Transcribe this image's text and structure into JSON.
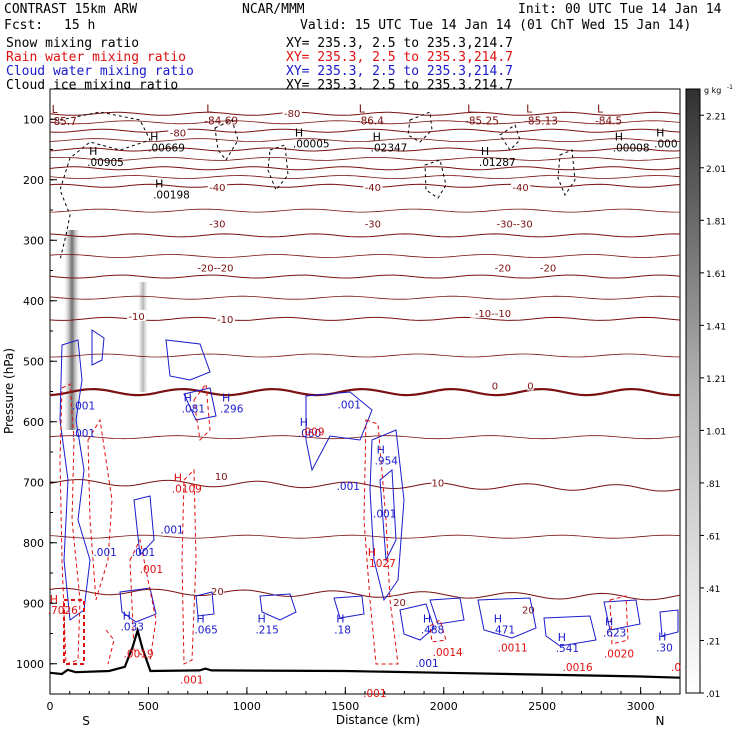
{
  "header": {
    "model": "CONTRAST 15km ARW",
    "org": "NCAR/MMM",
    "init": "Init: 00 UTC Tue 14 Jan 14",
    "fcst_label": "Fcst:",
    "fcst_value": "15 h",
    "valid": "Valid: 15 UTC Tue 14 Jan 14 (01 ChT Wed 15 Jan 14)"
  },
  "legend": [
    {
      "label": "Snow mixing ratio",
      "xy": "XY= 235.3,  2.5 to 235.3,214.7",
      "color": "#000000"
    },
    {
      "label": "Rain water mixing ratio",
      "xy": "XY= 235.3,  2.5 to 235.3,214.7",
      "color": "#e01010"
    },
    {
      "label": "Cloud water mixing ratio",
      "xy": "XY= 235.3,  2.5 to 235.3,214.7",
      "color": "#1a1acc"
    },
    {
      "label": "Cloud ice mixing ratio",
      "xy": "XY= 235.3,  2.5 to 235.3,214.7",
      "color": "#000000"
    }
  ],
  "chart_data": {
    "type": "contour cross-section",
    "xlabel": "Distance (km)",
    "ylabel": "Pressure (hPa)",
    "xlim": [
      0,
      3200
    ],
    "ylim": [
      1050,
      50
    ],
    "x_ticks": [
      0,
      500,
      1000,
      1500,
      2000,
      2500,
      3000
    ],
    "y_ticks": [
      100,
      200,
      300,
      400,
      500,
      600,
      700,
      800,
      900,
      1000
    ],
    "end_labels": [
      "S",
      "N"
    ],
    "colorbar": {
      "units": "g kg",
      "units_exp": "-1",
      "ticks": [
        "2.21",
        "2.01",
        "1.81",
        "1.61",
        "1.41",
        "1.21",
        "1.01",
        ".81",
        ".61",
        ".41",
        ".21",
        ".01"
      ],
      "range": [
        0.01,
        2.31
      ]
    },
    "isotherms": [
      {
        "t": -80,
        "p": 91
      },
      {
        "t": -70,
        "p": 119
      },
      {
        "t": -60,
        "p": 150
      },
      {
        "t": -50,
        "p": 181
      },
      {
        "t": -40,
        "p": 210
      },
      {
        "t": -30,
        "p": 292
      },
      {
        "t": -20,
        "p": 360
      },
      {
        "t": -10,
        "p": 430
      },
      {
        "t": 0,
        "p": 551
      },
      {
        "t": 10,
        "p": 700
      },
      {
        "t": 20,
        "p": 880
      }
    ],
    "isotherm_labels": [
      {
        "text": "-80",
        "x": 1230,
        "p": 90
      },
      {
        "text": "-80",
        "x": 650,
        "p": 122
      },
      {
        "text": "-40",
        "x": 850,
        "p": 212
      },
      {
        "text": "-40",
        "x": 1640,
        "p": 212
      },
      {
        "text": "-40",
        "x": 2390,
        "p": 212
      },
      {
        "text": "-30",
        "x": 850,
        "p": 272
      },
      {
        "text": "-30",
        "x": 1640,
        "p": 272
      },
      {
        "text": "-30--30",
        "x": 2360,
        "p": 272
      },
      {
        "text": "-20--20",
        "x": 840,
        "p": 345
      },
      {
        "text": "-20",
        "x": 2300,
        "p": 345
      },
      {
        "text": "-20",
        "x": 2530,
        "p": 345
      },
      {
        "text": "-10",
        "x": 440,
        "p": 425
      },
      {
        "text": "-10",
        "x": 890,
        "p": 430
      },
      {
        "text": "-10--10",
        "x": 2250,
        "p": 420
      },
      {
        "text": "0",
        "x": 2260,
        "p": 540
      },
      {
        "text": "0",
        "x": 2440,
        "p": 540
      },
      {
        "text": "10",
        "x": 870,
        "p": 690
      },
      {
        "text": "10",
        "x": 1970,
        "p": 700
      },
      {
        "text": "20",
        "x": 850,
        "p": 880
      },
      {
        "text": "20",
        "x": 1775,
        "p": 898
      },
      {
        "text": "20",
        "x": 2430,
        "p": 910
      }
    ],
    "low_markers": [
      {
        "text": "-85.7",
        "x": 110,
        "p": 93
      },
      {
        "text": "-84.69",
        "x": 895,
        "p": 92
      },
      {
        "text": "-86.4",
        "x": 1670,
        "p": 92
      },
      {
        "text": "-85.25",
        "x": 2220,
        "p": 92
      },
      {
        "text": "-85.13",
        "x": 2520,
        "p": 92
      },
      {
        "text": "-84.5",
        "x": 2880,
        "p": 92
      }
    ],
    "high_markers": [
      {
        "text": ".00669",
        "x": 590,
        "p": 148,
        "color": "#000000"
      },
      {
        "text": ".00005",
        "x": 1325,
        "p": 142,
        "color": "#000000"
      },
      {
        "text": ".02347",
        "x": 1720,
        "p": 148,
        "color": "#000000"
      },
      {
        "text": ".00008",
        "x": 2950,
        "p": 148,
        "color": "#000000"
      },
      {
        "text": ".000",
        "x": 3160,
        "p": 142,
        "color": "#000000"
      },
      {
        "text": ".00905",
        "x": 280,
        "p": 172,
        "color": "#000000"
      },
      {
        "text": ".01287",
        "x": 2270,
        "p": 172,
        "color": "#000000"
      },
      {
        "text": ".00198",
        "x": 615,
        "p": 226,
        "color": "#000000"
      },
      {
        "text": ".081",
        "x": 760,
        "p": 580,
        "color": "#1a1acc"
      },
      {
        "text": ".296",
        "x": 955,
        "p": 580,
        "color": "#1a1acc"
      },
      {
        "text": ".060",
        "x": 1350,
        "p": 620,
        "color": "#1a1acc"
      },
      {
        "text": ".954",
        "x": 1740,
        "p": 666,
        "color": "#1a1acc"
      },
      {
        "text": ".0109",
        "x": 710,
        "p": 712,
        "color": "#e01010"
      },
      {
        "text": ".065",
        "x": 825,
        "p": 945,
        "color": "#1a1acc"
      },
      {
        "text": ".215",
        "x": 1135,
        "p": 945,
        "color": "#1a1acc"
      },
      {
        "text": ".18",
        "x": 1535,
        "p": 945,
        "color": "#1a1acc"
      },
      {
        "text": ".033",
        "x": 450,
        "p": 940,
        "color": "#1a1acc"
      },
      {
        "text": ".1027",
        "x": 1695,
        "p": 835,
        "color": "#e01010"
      },
      {
        "text": ".488",
        "x": 1975,
        "p": 945,
        "color": "#1a1acc"
      },
      {
        "text": ".471",
        "x": 2335,
        "p": 945,
        "color": "#1a1acc"
      },
      {
        "text": ".541",
        "x": 2660,
        "p": 976,
        "color": "#1a1acc"
      },
      {
        "text": ".623",
        "x": 2900,
        "p": 950,
        "color": "#1a1acc"
      },
      {
        "text": ".30",
        "x": 3170,
        "p": 975,
        "color": "#1a1acc"
      },
      {
        "text": ".7026",
        "x": 80,
        "p": 913,
        "color": "#e01010"
      }
    ],
    "plain_labels": [
      {
        "text": ".001",
        "x": 170,
        "p": 580,
        "color": "#1a1acc"
      },
      {
        "text": ".001",
        "x": 1520,
        "p": 578,
        "color": "#1a1acc"
      },
      {
        "text": ".001",
        "x": 170,
        "p": 625,
        "color": "#1a1acc"
      },
      {
        "text": ".001",
        "x": 1515,
        "p": 713,
        "color": "#1a1acc"
      },
      {
        "text": ".001",
        "x": 1700,
        "p": 758,
        "color": "#1a1acc"
      },
      {
        "text": ".001",
        "x": 620,
        "p": 785,
        "color": "#1a1acc"
      },
      {
        "text": ".001",
        "x": 280,
        "p": 822,
        "color": "#1a1acc"
      },
      {
        "text": ".001",
        "x": 475,
        "p": 822,
        "color": "#1a1acc"
      },
      {
        "text": ".001",
        "x": 515,
        "p": 850,
        "color": "#e01010"
      },
      {
        "text": ".001",
        "x": 1915,
        "p": 1005,
        "color": "#1a1acc"
      },
      {
        "text": ".0014",
        "x": 2020,
        "p": 987,
        "color": "#e01010"
      },
      {
        "text": ".0016",
        "x": 2680,
        "p": 1012,
        "color": "#e01010"
      },
      {
        "text": ".0020",
        "x": 2890,
        "p": 990,
        "color": "#e01010"
      },
      {
        "text": ".001",
        "x": 720,
        "p": 1033,
        "color": "#e01010"
      },
      {
        "text": ".001",
        "x": 1650,
        "p": 1055,
        "color": "#e01010"
      },
      {
        "text": ".0",
        "x": 3180,
        "p": 1012,
        "color": "#e01010"
      },
      {
        "text": ".009",
        "x": 1335,
        "p": 623,
        "color": "#e01010"
      },
      {
        "text": ".0011",
        "x": 2350,
        "p": 980,
        "color": "#e01010"
      },
      {
        "text": ".0019",
        "x": 450,
        "p": 990,
        "color": "#e01010"
      }
    ],
    "terrain": [
      {
        "x": 0,
        "p": 1015
      },
      {
        "x": 60,
        "p": 1017
      },
      {
        "x": 90,
        "p": 1010
      },
      {
        "x": 130,
        "p": 1014
      },
      {
        "x": 300,
        "p": 1012
      },
      {
        "x": 380,
        "p": 1005
      },
      {
        "x": 420,
        "p": 972
      },
      {
        "x": 445,
        "p": 945
      },
      {
        "x": 470,
        "p": 975
      },
      {
        "x": 510,
        "p": 1012
      },
      {
        "x": 760,
        "p": 1011
      },
      {
        "x": 790,
        "p": 1008
      },
      {
        "x": 820,
        "p": 1011
      },
      {
        "x": 1500,
        "p": 1012
      },
      {
        "x": 2000,
        "p": 1015
      },
      {
        "x": 2500,
        "p": 1018
      },
      {
        "x": 3000,
        "p": 1021
      },
      {
        "x": 3200,
        "p": 1023
      }
    ]
  }
}
